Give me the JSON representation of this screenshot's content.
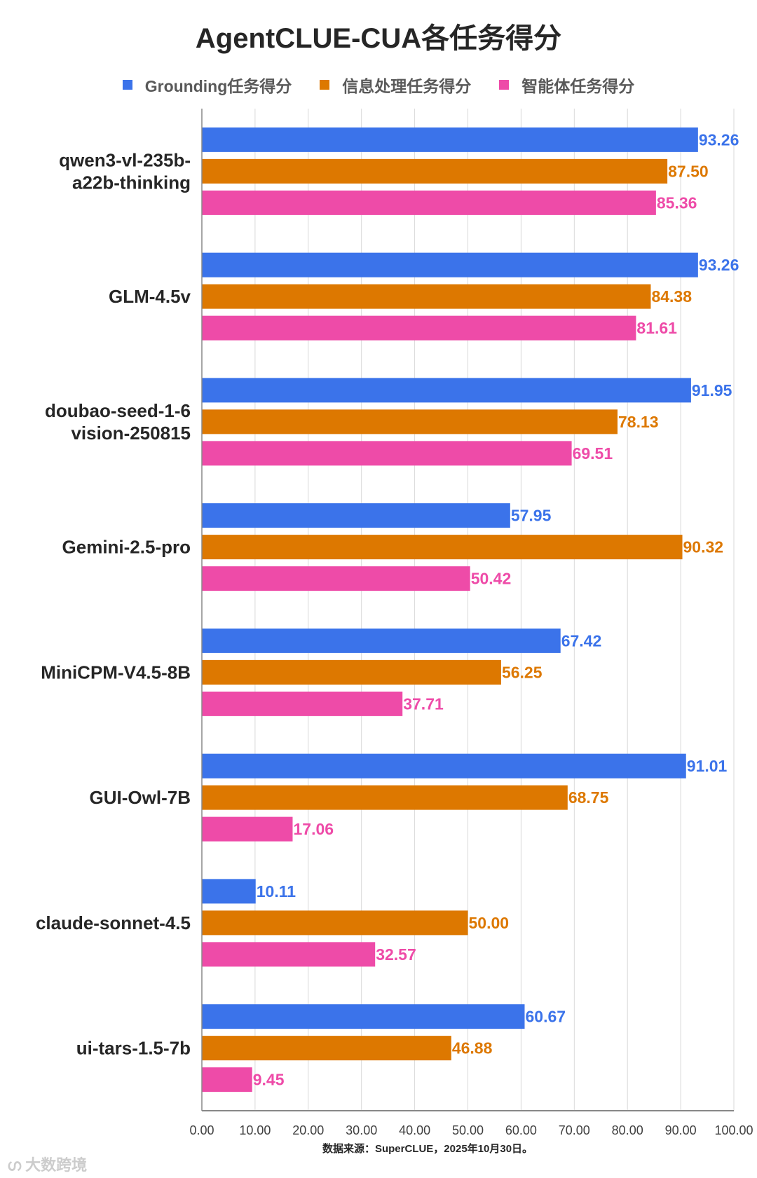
{
  "chart_data": {
    "type": "bar",
    "orientation": "horizontal",
    "title": "AgentCLUE-CUA各任务得分",
    "categories": [
      "qwen3-vl-235b-\na22b-thinking",
      "GLM-4.5v",
      "doubao-seed-1-6\nvision-250815",
      "Gemini-2.5-pro",
      "MiniCPM-V4.5-8B",
      "GUI-Owl-7B",
      "claude-sonnet-4.5",
      "ui-tars-1.5-7b"
    ],
    "series": [
      {
        "name": "Grounding任务得分",
        "color": "#3b73ea",
        "values": [
          93.26,
          93.26,
          91.95,
          57.95,
          67.42,
          91.01,
          10.11,
          60.67
        ]
      },
      {
        "name": "信息处理任务得分",
        "color": "#dd7800",
        "values": [
          87.5,
          84.38,
          78.13,
          90.32,
          56.25,
          68.75,
          50.0,
          46.88
        ]
      },
      {
        "name": "智能体任务得分",
        "color": "#ee4ba8",
        "values": [
          85.36,
          81.61,
          69.51,
          50.42,
          37.71,
          17.06,
          32.57,
          9.45
        ]
      }
    ],
    "xlim": [
      0,
      100
    ],
    "xticks": [
      "0.00",
      "10.00",
      "20.00",
      "30.00",
      "40.00",
      "50.00",
      "60.00",
      "70.00",
      "80.00",
      "90.00",
      "100.00"
    ],
    "grid": true,
    "legend_position": "top"
  },
  "source": "数据来源：SuperCLUE，2025年10月30日。",
  "watermark": "大数跨境"
}
